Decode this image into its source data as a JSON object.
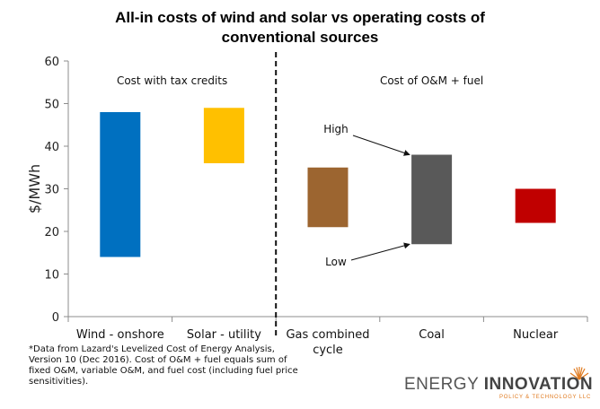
{
  "title_line1": "All-in costs of wind and solar vs operating costs of",
  "title_line2": "conventional sources",
  "chart_data": {
    "type": "bar",
    "subtype": "floating-range",
    "title": "All-in costs of wind and solar vs operating costs of conventional sources",
    "ylabel": "$/MWh",
    "xlabel": "",
    "ylim": [
      0,
      60
    ],
    "yticks": [
      0,
      10,
      20,
      30,
      40,
      50,
      60
    ],
    "grid": false,
    "categories": [
      "Wind - onshore",
      "Solar - utility",
      "Gas combined cycle",
      "Coal",
      "Nuclear"
    ],
    "category_labels": [
      [
        "Wind - onshore"
      ],
      [
        "Solar - utility"
      ],
      [
        "Gas combined",
        "cycle"
      ],
      [
        "Coal"
      ],
      [
        "Nuclear"
      ]
    ],
    "low": [
      14,
      36,
      21,
      17,
      22
    ],
    "high": [
      48,
      49,
      35,
      38,
      30
    ],
    "colors": [
      "#0070c0",
      "#ffc000",
      "#9c6530",
      "#595959",
      "#c00000"
    ],
    "groups": [
      {
        "label": "Cost with tax credits",
        "categories": [
          "Wind - onshore",
          "Solar - utility"
        ]
      },
      {
        "label": "Cost of O&M + fuel",
        "categories": [
          "Gas combined cycle",
          "Coal",
          "Nuclear"
        ]
      }
    ],
    "annotations": [
      {
        "text": "High",
        "points_to": "Coal",
        "value": 38
      },
      {
        "text": "Low",
        "points_to": "Coal",
        "value": 17
      }
    ]
  },
  "footnote": "*Data from Lazard's Levelized Cost of Energy Analysis, Version 10 (Dec 2016). Cost of O&M + fuel equals sum of fixed O&M, variable O&M, and fuel cost (including fuel price sensitivities).",
  "logo": {
    "main_light": "ENERGY ",
    "main_bold": "INNOVATION",
    "sub": "POLICY & TECHNOLOGY LLC",
    "accent": "#e07a1f"
  }
}
